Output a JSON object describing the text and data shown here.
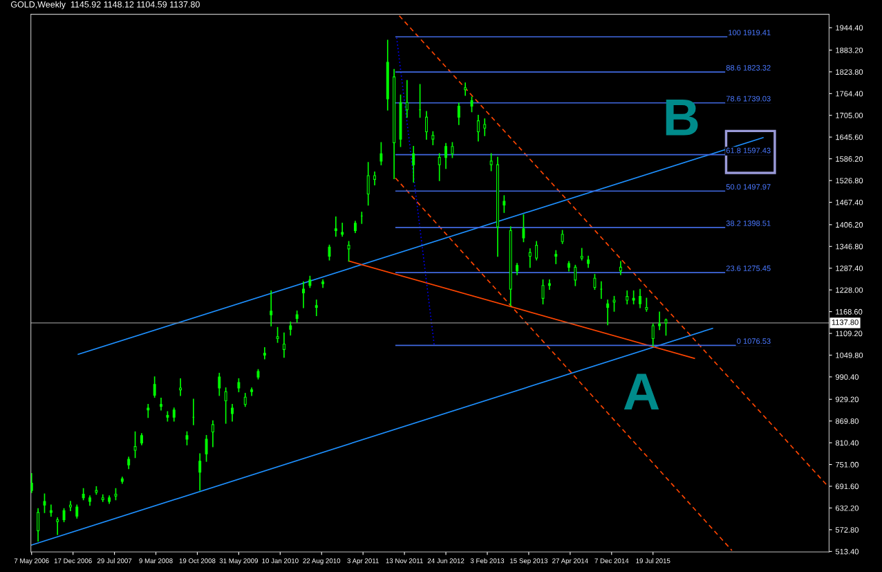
{
  "chart_data": {
    "type": "candlestick",
    "title": "GOLD,Weekly  1145.92 1148.12 1104.59 1137.80",
    "color": "#00ff00",
    "x": [
      "2006-05-07",
      "2006-06-11",
      "2006-07-16",
      "2006-08-20",
      "2006-09-24",
      "2006-10-29",
      "2006-12-03",
      "2007-01-07",
      "2007-02-11",
      "2007-03-18",
      "2007-04-22",
      "2007-05-27",
      "2007-07-01",
      "2007-08-05",
      "2007-09-09",
      "2007-10-14",
      "2007-11-18",
      "2007-12-23",
      "2008-01-27",
      "2008-03-02",
      "2008-04-06",
      "2008-05-11",
      "2008-06-15",
      "2008-07-20",
      "2008-08-24",
      "2008-09-28",
      "2008-11-02",
      "2008-12-07",
      "2009-01-11",
      "2009-02-15",
      "2009-03-22",
      "2009-04-26",
      "2009-05-31",
      "2009-07-05",
      "2009-08-09",
      "2009-09-13",
      "2009-10-18",
      "2009-11-22",
      "2009-12-27",
      "2010-01-31",
      "2010-03-07",
      "2010-04-11",
      "2010-05-16",
      "2010-06-20",
      "2010-07-25",
      "2010-08-29",
      "2010-10-03",
      "2010-11-07",
      "2010-12-12",
      "2011-01-16",
      "2011-02-20",
      "2011-03-27",
      "2011-05-01",
      "2011-06-05",
      "2011-07-10",
      "2011-08-14",
      "2011-09-18",
      "2011-10-23",
      "2011-11-27",
      "2012-01-01",
      "2012-02-05",
      "2012-03-11",
      "2012-04-15",
      "2012-05-20",
      "2012-06-24",
      "2012-07-29",
      "2012-09-02",
      "2012-10-07",
      "2012-11-11",
      "2012-12-16",
      "2013-01-20",
      "2013-02-24",
      "2013-03-31",
      "2013-05-05",
      "2013-06-09",
      "2013-07-14",
      "2013-08-18",
      "2013-09-22",
      "2013-10-27",
      "2013-12-01",
      "2014-01-05",
      "2014-02-09",
      "2014-03-16",
      "2014-04-20",
      "2014-05-25",
      "2014-06-29",
      "2014-08-03",
      "2014-09-07",
      "2014-10-12",
      "2014-11-16",
      "2014-12-21",
      "2015-01-25",
      "2015-03-01",
      "2015-04-05",
      "2015-05-10",
      "2015-06-14",
      "2015-07-19",
      "2015-08-23",
      "2015-09-27"
    ],
    "ohlc": [
      [
        680,
        726,
        675,
        700
      ],
      [
        620,
        630,
        542,
        570
      ],
      [
        640,
        670,
        620,
        650
      ],
      [
        620,
        640,
        610,
        625
      ],
      [
        600,
        605,
        560,
        595
      ],
      [
        600,
        630,
        595,
        625
      ],
      [
        640,
        650,
        625,
        635
      ],
      [
        610,
        640,
        605,
        635
      ],
      [
        660,
        685,
        655,
        670
      ],
      [
        650,
        665,
        640,
        660
      ],
      [
        680,
        690,
        670,
        675
      ],
      [
        660,
        668,
        650,
        655
      ],
      [
        650,
        665,
        645,
        660
      ],
      [
        670,
        685,
        655,
        665
      ],
      [
        705,
        716,
        700,
        712
      ],
      [
        750,
        771,
        740,
        765
      ],
      [
        800,
        840,
        770,
        790
      ],
      [
        810,
        835,
        805,
        830
      ],
      [
        900,
        915,
        880,
        905
      ],
      [
        940,
        990,
        935,
        970
      ],
      [
        910,
        932,
        900,
        915
      ],
      [
        880,
        895,
        870,
        885
      ],
      [
        880,
        905,
        870,
        900
      ],
      [
        960,
        985,
        940,
        955
      ],
      [
        820,
        840,
        805,
        830
      ],
      [
        880,
        929,
        860,
        880
      ],
      [
        730,
        780,
        681,
        760
      ],
      [
        780,
        830,
        760,
        820
      ],
      [
        860,
        870,
        800,
        840
      ],
      [
        960,
        1000,
        940,
        990
      ],
      [
        950,
        960,
        864,
        925
      ],
      [
        890,
        915,
        870,
        905
      ],
      [
        960,
        985,
        950,
        975
      ],
      [
        935,
        945,
        910,
        915
      ],
      [
        950,
        960,
        940,
        955
      ],
      [
        990,
        1010,
        985,
        1005
      ],
      [
        1050,
        1070,
        1040,
        1055
      ],
      [
        1160,
        1225,
        1130,
        1170
      ],
      [
        1100,
        1125,
        1085,
        1095
      ],
      [
        1080,
        1110,
        1044,
        1065
      ],
      [
        1120,
        1140,
        1105,
        1130
      ],
      [
        1150,
        1170,
        1140,
        1160
      ],
      [
        1220,
        1250,
        1180,
        1230
      ],
      [
        1240,
        1265,
        1235,
        1255
      ],
      [
        1180,
        1200,
        1158,
        1185
      ],
      [
        1245,
        1255,
        1235,
        1250
      ],
      [
        1320,
        1350,
        1310,
        1345
      ],
      [
        1390,
        1427,
        1375,
        1395
      ],
      [
        1380,
        1410,
        1375,
        1385
      ],
      [
        1350,
        1360,
        1307,
        1340
      ],
      [
        1390,
        1415,
        1385,
        1410
      ],
      [
        1430,
        1440,
        1410,
        1430
      ],
      [
        1540,
        1576,
        1460,
        1490
      ],
      [
        1540,
        1550,
        1515,
        1530
      ],
      [
        1580,
        1630,
        1570,
        1600
      ],
      [
        1750,
        1910,
        1720,
        1850
      ],
      [
        1810,
        1830,
        1532,
        1630
      ],
      [
        1640,
        1760,
        1620,
        1740
      ],
      [
        1740,
        1800,
        1700,
        1720
      ],
      [
        1570,
        1620,
        1523,
        1600
      ],
      [
        1720,
        1789,
        1700,
        1720
      ],
      [
        1700,
        1715,
        1640,
        1660
      ],
      [
        1650,
        1660,
        1625,
        1640
      ],
      [
        1590,
        1600,
        1527,
        1570
      ],
      [
        1590,
        1628,
        1560,
        1620
      ],
      [
        1620,
        1630,
        1590,
        1600
      ],
      [
        1700,
        1738,
        1680,
        1730
      ],
      [
        1780,
        1793,
        1760,
        1775
      ],
      [
        1730,
        1755,
        1715,
        1745
      ],
      [
        1690,
        1705,
        1635,
        1660
      ],
      [
        1680,
        1695,
        1650,
        1670
      ],
      [
        1580,
        1600,
        1554,
        1570
      ],
      [
        1570,
        1590,
        1320,
        1400
      ],
      [
        1460,
        1485,
        1440,
        1470
      ],
      [
        1390,
        1400,
        1185,
        1230
      ],
      [
        1280,
        1300,
        1270,
        1295
      ],
      [
        1370,
        1433,
        1360,
        1395
      ],
      [
        1330,
        1340,
        1290,
        1320
      ],
      [
        1350,
        1360,
        1310,
        1315
      ],
      [
        1240,
        1255,
        1190,
        1205
      ],
      [
        1240,
        1255,
        1230,
        1245
      ],
      [
        1320,
        1335,
        1300,
        1325
      ],
      [
        1380,
        1390,
        1355,
        1360
      ],
      [
        1290,
        1305,
        1280,
        1300
      ],
      [
        1290,
        1295,
        1240,
        1255
      ],
      [
        1320,
        1341,
        1310,
        1315
      ],
      [
        1300,
        1320,
        1290,
        1310
      ],
      [
        1260,
        1270,
        1230,
        1235
      ],
      [
        1230,
        1250,
        1205,
        1230
      ],
      [
        1180,
        1200,
        1133,
        1190
      ],
      [
        1200,
        1210,
        1170,
        1195
      ],
      [
        1290,
        1305,
        1270,
        1280
      ],
      [
        1210,
        1225,
        1190,
        1200
      ],
      [
        1200,
        1225,
        1190,
        1205
      ],
      [
        1190,
        1229,
        1180,
        1210
      ],
      [
        1180,
        1205,
        1170,
        1175
      ],
      [
        1130,
        1135,
        1075,
        1095
      ],
      [
        1130,
        1167,
        1120,
        1135
      ],
      [
        1145.92,
        1148.12,
        1104.59,
        1137.8
      ]
    ],
    "series": [
      {
        "type": "line",
        "color": "#1e90ff",
        "line_style": "solid",
        "x": [
          "2006-05-07",
          "2016-06-05"
        ],
        "values": [
          531,
          1123
        ]
      },
      {
        "type": "line",
        "color": "#1e90ff",
        "line_style": "solid",
        "x": [
          "2007-01-14",
          "2017-03-05"
        ],
        "values": [
          1052,
          1644
        ]
      },
      {
        "type": "line",
        "color": "#ff4500",
        "line_style": "solid",
        "x": [
          "2011-01-16",
          "2016-02-28"
        ],
        "values": [
          1307,
          1041
        ]
      },
      {
        "type": "line",
        "color": "#ff4500",
        "line_style": "dashed",
        "x": [
          "2011-10-16",
          "2018-02-18"
        ],
        "values": [
          1977,
          692
        ]
      },
      {
        "type": "line",
        "color": "#ff4500",
        "line_style": "dashed",
        "x": [
          "2011-09-25",
          "2016-09-18"
        ],
        "values": [
          1534,
          516
        ]
      },
      {
        "type": "line",
        "color": "#0000ff",
        "line_style": "dotted",
        "x": [
          "2011-10-02",
          "2012-04-22"
        ],
        "values": [
          1917,
          1077
        ]
      },
      {
        "type": "line",
        "color": "#4169e1",
        "line_style": "solid",
        "x": [
          "2011-09-28",
          "2017-04-16"
        ],
        "values": [
          1919.41,
          1919.41
        ]
      },
      {
        "type": "line",
        "color": "#4169e1",
        "line_style": "solid",
        "x": [
          "2011-09-28",
          "2017-04-16"
        ],
        "values": [
          1823.32,
          1823.32
        ]
      },
      {
        "type": "line",
        "color": "#4169e1",
        "line_style": "solid",
        "x": [
          "2011-09-28",
          "2017-04-16"
        ],
        "values": [
          1739.03,
          1739.03
        ]
      },
      {
        "type": "line",
        "color": "#4169e1",
        "line_style": "solid",
        "x": [
          "2011-09-28",
          "2017-04-16"
        ],
        "values": [
          1597.43,
          1597.43
        ]
      },
      {
        "type": "line",
        "color": "#4169e1",
        "line_style": "solid",
        "x": [
          "2011-09-28",
          "2017-04-16"
        ],
        "values": [
          1497.97,
          1497.97
        ]
      },
      {
        "type": "line",
        "color": "#4169e1",
        "line_style": "solid",
        "x": [
          "2011-09-28",
          "2017-04-16"
        ],
        "values": [
          1398.51,
          1398.51
        ]
      },
      {
        "type": "line",
        "color": "#4169e1",
        "line_style": "solid",
        "x": [
          "2011-09-28",
          "2017-04-16"
        ],
        "values": [
          1275.45,
          1275.45
        ]
      },
      {
        "type": "line",
        "color": "#4169e1",
        "line_style": "solid",
        "x": [
          "2011-09-28",
          "2017-04-16"
        ],
        "values": [
          1076.53,
          1076.53
        ]
      }
    ],
    "ref_lines": [
      {
        "axis": "y",
        "value": 1137.8,
        "label": "1137.80",
        "color": "#8c8c8c"
      }
    ],
    "annotations": [
      {
        "text": "100 1919.41",
        "x": "2017-04-16",
        "y": 1919.41
      },
      {
        "text": "88.6 1823.32",
        "x": "2017-04-16",
        "y": 1823.32
      },
      {
        "text": "78.6 1739.03",
        "x": "2017-04-16",
        "y": 1739.03
      },
      {
        "text": "61.8 1597.43",
        "x": "2017-04-16",
        "y": 1597.43
      },
      {
        "text": "50.0 1497.97",
        "x": "2017-04-16",
        "y": 1497.97
      },
      {
        "text": "38.2 1398.51",
        "x": "2017-04-16",
        "y": 1398.51
      },
      {
        "text": "23.6 1275.45",
        "x": "2017-04-16",
        "y": 1275.45
      },
      {
        "text": "0 1076.53",
        "x": "2017-04-16",
        "y": 1076.53
      },
      "B",
      "A"
    ],
    "xlim": [
      "2006-05-03",
      "2018-02-25"
    ],
    "ylim": [
      512,
      1981
    ],
    "xticks": [
      {
        "value": "2006-05-07",
        "label": "7 May 2006"
      },
      {
        "value": "2006-12-17",
        "label": "17 Dec 2006"
      },
      {
        "value": "2007-07-29",
        "label": "29 Jul 2007"
      },
      {
        "value": "2008-03-09",
        "label": "9 Mar 2008"
      },
      {
        "value": "2008-10-19",
        "label": "19 Oct 2008"
      },
      {
        "value": "2009-05-31",
        "label": "31 May 2009"
      },
      {
        "value": "2010-01-10",
        "label": "10 Jan 2010"
      },
      {
        "value": "2010-08-22",
        "label": "22 Aug 2010"
      },
      {
        "value": "2011-04-03",
        "label": "3 Apr 2011"
      },
      {
        "value": "2011-11-13",
        "label": "13 Nov 2011"
      },
      {
        "value": "2012-06-24",
        "label": "24 Jun 2012"
      },
      {
        "value": "2013-02-03",
        "label": "3 Feb 2013"
      },
      {
        "value": "2013-09-15",
        "label": "15 Sep 2013"
      },
      {
        "value": "2014-04-27",
        "label": "27 Apr 2014"
      },
      {
        "value": "2014-12-07",
        "label": "7 Dec 2014"
      },
      {
        "value": "2015-07-19",
        "label": "19 Jul 2015"
      }
    ],
    "yticks": [
      {
        "value": 513.4,
        "label": "513.40"
      },
      {
        "value": 572.8,
        "label": "572.80"
      },
      {
        "value": 632.2,
        "label": "632.20"
      },
      {
        "value": 691.6,
        "label": "691.60"
      },
      {
        "value": 751,
        "label": "751.00"
      },
      {
        "value": 810.4,
        "label": "810.40"
      },
      {
        "value": 869.8,
        "label": "869.80"
      },
      {
        "value": 929.2,
        "label": "929.20"
      },
      {
        "value": 990.4,
        "label": "990.40"
      },
      {
        "value": 1049.8,
        "label": "1049.80"
      },
      {
        "value": 1109.2,
        "label": "1109.20"
      },
      {
        "value": 1168.6,
        "label": "1168.60"
      },
      {
        "value": 1228,
        "label": "1228.00"
      },
      {
        "value": 1287.4,
        "label": "1287.40"
      },
      {
        "value": 1346.8,
        "label": "1346.80"
      },
      {
        "value": 1406.2,
        "label": "1406.20"
      },
      {
        "value": 1467.4,
        "label": "1467.40"
      },
      {
        "value": 1526.8,
        "label": "1526.80"
      },
      {
        "value": 1586.2,
        "label": "1586.20"
      },
      {
        "value": 1645.6,
        "label": "1645.60"
      },
      {
        "value": 1705,
        "label": "1705.00"
      },
      {
        "value": 1764.4,
        "label": "1764.40"
      },
      {
        "value": 1823.8,
        "label": "1823.80"
      },
      {
        "value": 1883.2,
        "label": "1883.20"
      },
      {
        "value": 1944.4,
        "label": "1944.40"
      }
    ]
  }
}
